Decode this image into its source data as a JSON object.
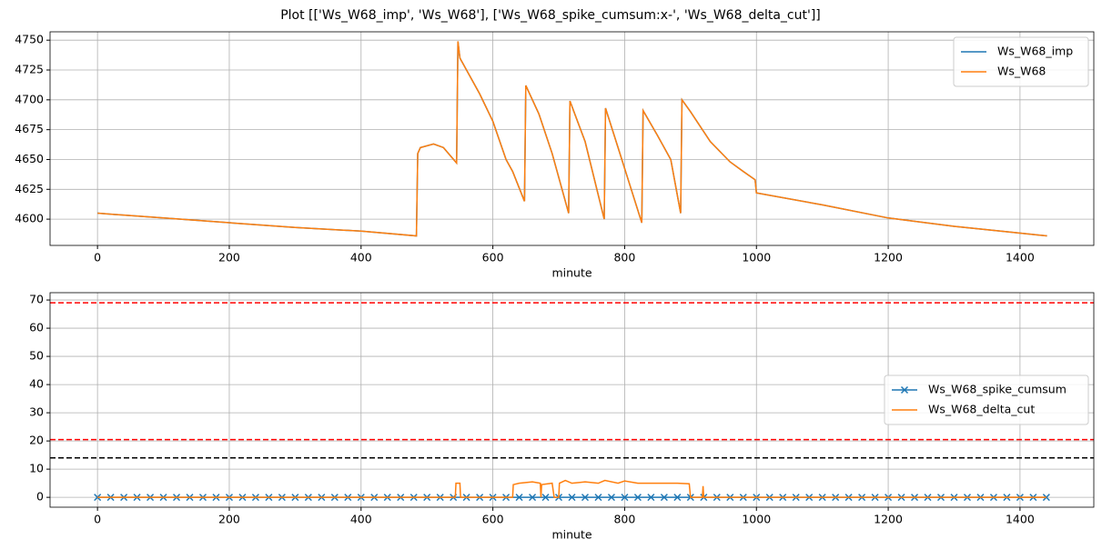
{
  "title": "Plot [['Ws_W68_imp', 'Ws_W68'], ['Ws_W68_spike_cumsum:x-', 'Ws_W68_delta_cut']]",
  "chart_data": [
    {
      "type": "line",
      "xlabel": "minute",
      "xlim": [
        -72,
        1512
      ],
      "ylim": [
        4578,
        4757
      ],
      "xticks": [
        0,
        200,
        400,
        600,
        800,
        1000,
        1200,
        1400
      ],
      "yticks": [
        4600,
        4625,
        4650,
        4675,
        4700,
        4725,
        4750
      ],
      "grid": true,
      "legend": "upper right",
      "series": [
        {
          "name": "Ws_W68_imp",
          "color": "#1f77b4",
          "x": [
            0,
            100,
            200,
            300,
            400,
            484,
            486,
            490,
            510,
            525,
            545,
            547,
            550,
            560,
            580,
            600,
            620,
            630,
            648,
            650,
            670,
            690,
            715,
            717,
            740,
            769,
            771,
            790,
            810,
            826,
            828,
            850,
            870,
            885,
            887,
            900,
            930,
            960,
            980,
            998,
            1000,
            1100,
            1200,
            1300,
            1441
          ],
          "values": [
            4605,
            4601,
            4597,
            4593,
            4590,
            4586,
            4655,
            4660,
            4663,
            4660,
            4647,
            4749,
            4735,
            4725,
            4705,
            4682,
            4650,
            4640,
            4615,
            4712,
            4688,
            4655,
            4605,
            4699,
            4665,
            4600,
            4693,
            4660,
            4625,
            4597,
            4691,
            4670,
            4650,
            4605,
            4700,
            4690,
            4665,
            4648,
            4640,
            4633,
            4622,
            4612,
            4601,
            4594,
            4586
          ]
        },
        {
          "name": "Ws_W68",
          "color": "#ff7f0e",
          "x": [
            0,
            100,
            200,
            300,
            400,
            484,
            486,
            490,
            510,
            525,
            545,
            547,
            550,
            560,
            580,
            600,
            620,
            630,
            648,
            650,
            670,
            690,
            715,
            717,
            740,
            769,
            771,
            790,
            810,
            826,
            828,
            850,
            870,
            885,
            887,
            900,
            930,
            960,
            980,
            998,
            1000,
            1100,
            1200,
            1300,
            1441
          ],
          "values": [
            4605,
            4601,
            4597,
            4593,
            4590,
            4586,
            4655,
            4660,
            4663,
            4660,
            4647,
            4749,
            4735,
            4725,
            4705,
            4682,
            4650,
            4640,
            4615,
            4712,
            4688,
            4655,
            4605,
            4699,
            4665,
            4600,
            4693,
            4660,
            4625,
            4597,
            4691,
            4670,
            4650,
            4605,
            4700,
            4690,
            4665,
            4648,
            4640,
            4633,
            4622,
            4612,
            4601,
            4594,
            4586
          ]
        }
      ]
    },
    {
      "type": "line",
      "xlabel": "minute",
      "xlim": [
        -72,
        1512
      ],
      "ylim": [
        -3.5,
        72.6
      ],
      "xticks": [
        0,
        200,
        400,
        600,
        800,
        1000,
        1200,
        1400
      ],
      "yticks": [
        0,
        10,
        20,
        30,
        40,
        50,
        60,
        70
      ],
      "grid": true,
      "legend": "center right",
      "hlines": [
        {
          "value": 69,
          "color": "#ff0000"
        },
        {
          "value": 20.5,
          "color": "#ff0000"
        },
        {
          "value": 14,
          "color": "#000000"
        }
      ],
      "series": [
        {
          "name": "Ws_W68_spike_cumsum",
          "color": "#1f77b4",
          "marker": "x",
          "x": [
            0,
            20,
            40,
            60,
            80,
            100,
            120,
            140,
            160,
            180,
            200,
            220,
            240,
            260,
            280,
            300,
            320,
            340,
            360,
            380,
            400,
            420,
            440,
            460,
            480,
            500,
            520,
            540,
            560,
            580,
            600,
            620,
            640,
            660,
            680,
            700,
            720,
            740,
            760,
            780,
            800,
            820,
            840,
            860,
            880,
            900,
            920,
            940,
            960,
            980,
            1000,
            1020,
            1040,
            1060,
            1080,
            1100,
            1120,
            1140,
            1160,
            1180,
            1200,
            1220,
            1240,
            1260,
            1280,
            1300,
            1320,
            1340,
            1360,
            1380,
            1400,
            1420,
            1440
          ],
          "values": [
            0,
            0,
            0,
            0,
            0,
            0,
            0,
            0,
            0,
            0,
            0,
            0,
            0,
            0,
            0,
            0,
            0,
            0,
            0,
            0,
            0,
            0,
            0,
            0,
            0,
            0,
            0,
            0,
            0,
            0,
            0,
            0,
            0,
            0,
            0,
            0,
            0,
            0,
            0,
            0,
            0,
            0,
            0,
            0,
            0,
            0,
            0,
            0,
            0,
            0,
            0,
            0,
            0,
            0,
            0,
            0,
            0,
            0,
            0,
            0,
            0,
            0,
            0,
            0,
            0,
            0,
            0,
            0,
            0,
            0,
            0,
            0,
            0
          ]
        },
        {
          "name": "Ws_W68_delta_cut",
          "color": "#ff7f0e",
          "x": [
            0,
            543,
            544,
            550,
            551,
            630,
            631,
            640,
            660,
            672,
            673,
            674,
            690,
            693,
            700,
            701,
            710,
            720,
            740,
            760,
            770,
            790,
            800,
            820,
            850,
            880,
            898,
            900,
            918,
            919,
            920,
            1440
          ],
          "values": [
            0,
            0,
            5,
            5,
            0,
            0,
            4.5,
            5,
            5.5,
            5,
            0,
            4.5,
            5,
            0,
            0,
            5,
            6,
            5,
            5.5,
            5,
            6,
            5,
            5.8,
            5,
            5,
            5,
            4.8,
            0,
            0,
            4,
            0,
            0
          ]
        }
      ]
    }
  ]
}
